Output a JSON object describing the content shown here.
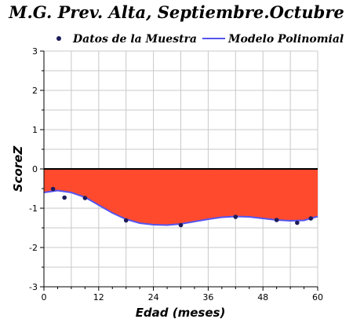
{
  "chart_data": {
    "type": "line",
    "title": "M.G. Prev. Alta, Septiembre.Octubre",
    "xlabel": "Edad (meses)",
    "ylabel": "ScoreZ",
    "xlim": [
      0,
      60
    ],
    "ylim": [
      -3,
      3
    ],
    "x_ticks": [
      0,
      12,
      24,
      36,
      48,
      60
    ],
    "x_tick_labels": [
      "0",
      "12",
      "24",
      "36",
      "48",
      "60"
    ],
    "y_ticks": [
      3,
      2,
      1,
      0,
      -1,
      -2,
      -3
    ],
    "y_tick_labels": [
      "3",
      "2",
      "1",
      "0",
      "-1",
      "-2",
      "-3"
    ],
    "grid": true,
    "legend_position": "top",
    "series": [
      {
        "name": "Datos de la Muestra",
        "kind": "scatter",
        "color": "#1c1c5a",
        "x": [
          2,
          4.5,
          9,
          18,
          30,
          42,
          51,
          55.5,
          58.5
        ],
        "y": [
          -0.51,
          -0.73,
          -0.74,
          -1.31,
          -1.43,
          -1.22,
          -1.3,
          -1.37,
          -1.26
        ]
      },
      {
        "name": "Modelo Polinomial",
        "kind": "line",
        "color": "#5555ee",
        "fill_color": "#ff4a2e",
        "x": [
          0,
          3,
          6,
          9,
          12,
          15,
          18,
          21,
          24,
          27,
          30,
          33,
          36,
          39,
          42,
          45,
          48,
          51,
          54,
          57,
          60
        ],
        "y": [
          -0.6,
          -0.55,
          -0.6,
          -0.72,
          -0.92,
          -1.12,
          -1.28,
          -1.38,
          -1.42,
          -1.43,
          -1.4,
          -1.34,
          -1.28,
          -1.23,
          -1.21,
          -1.22,
          -1.26,
          -1.3,
          -1.32,
          -1.31,
          -1.21
        ]
      }
    ]
  }
}
